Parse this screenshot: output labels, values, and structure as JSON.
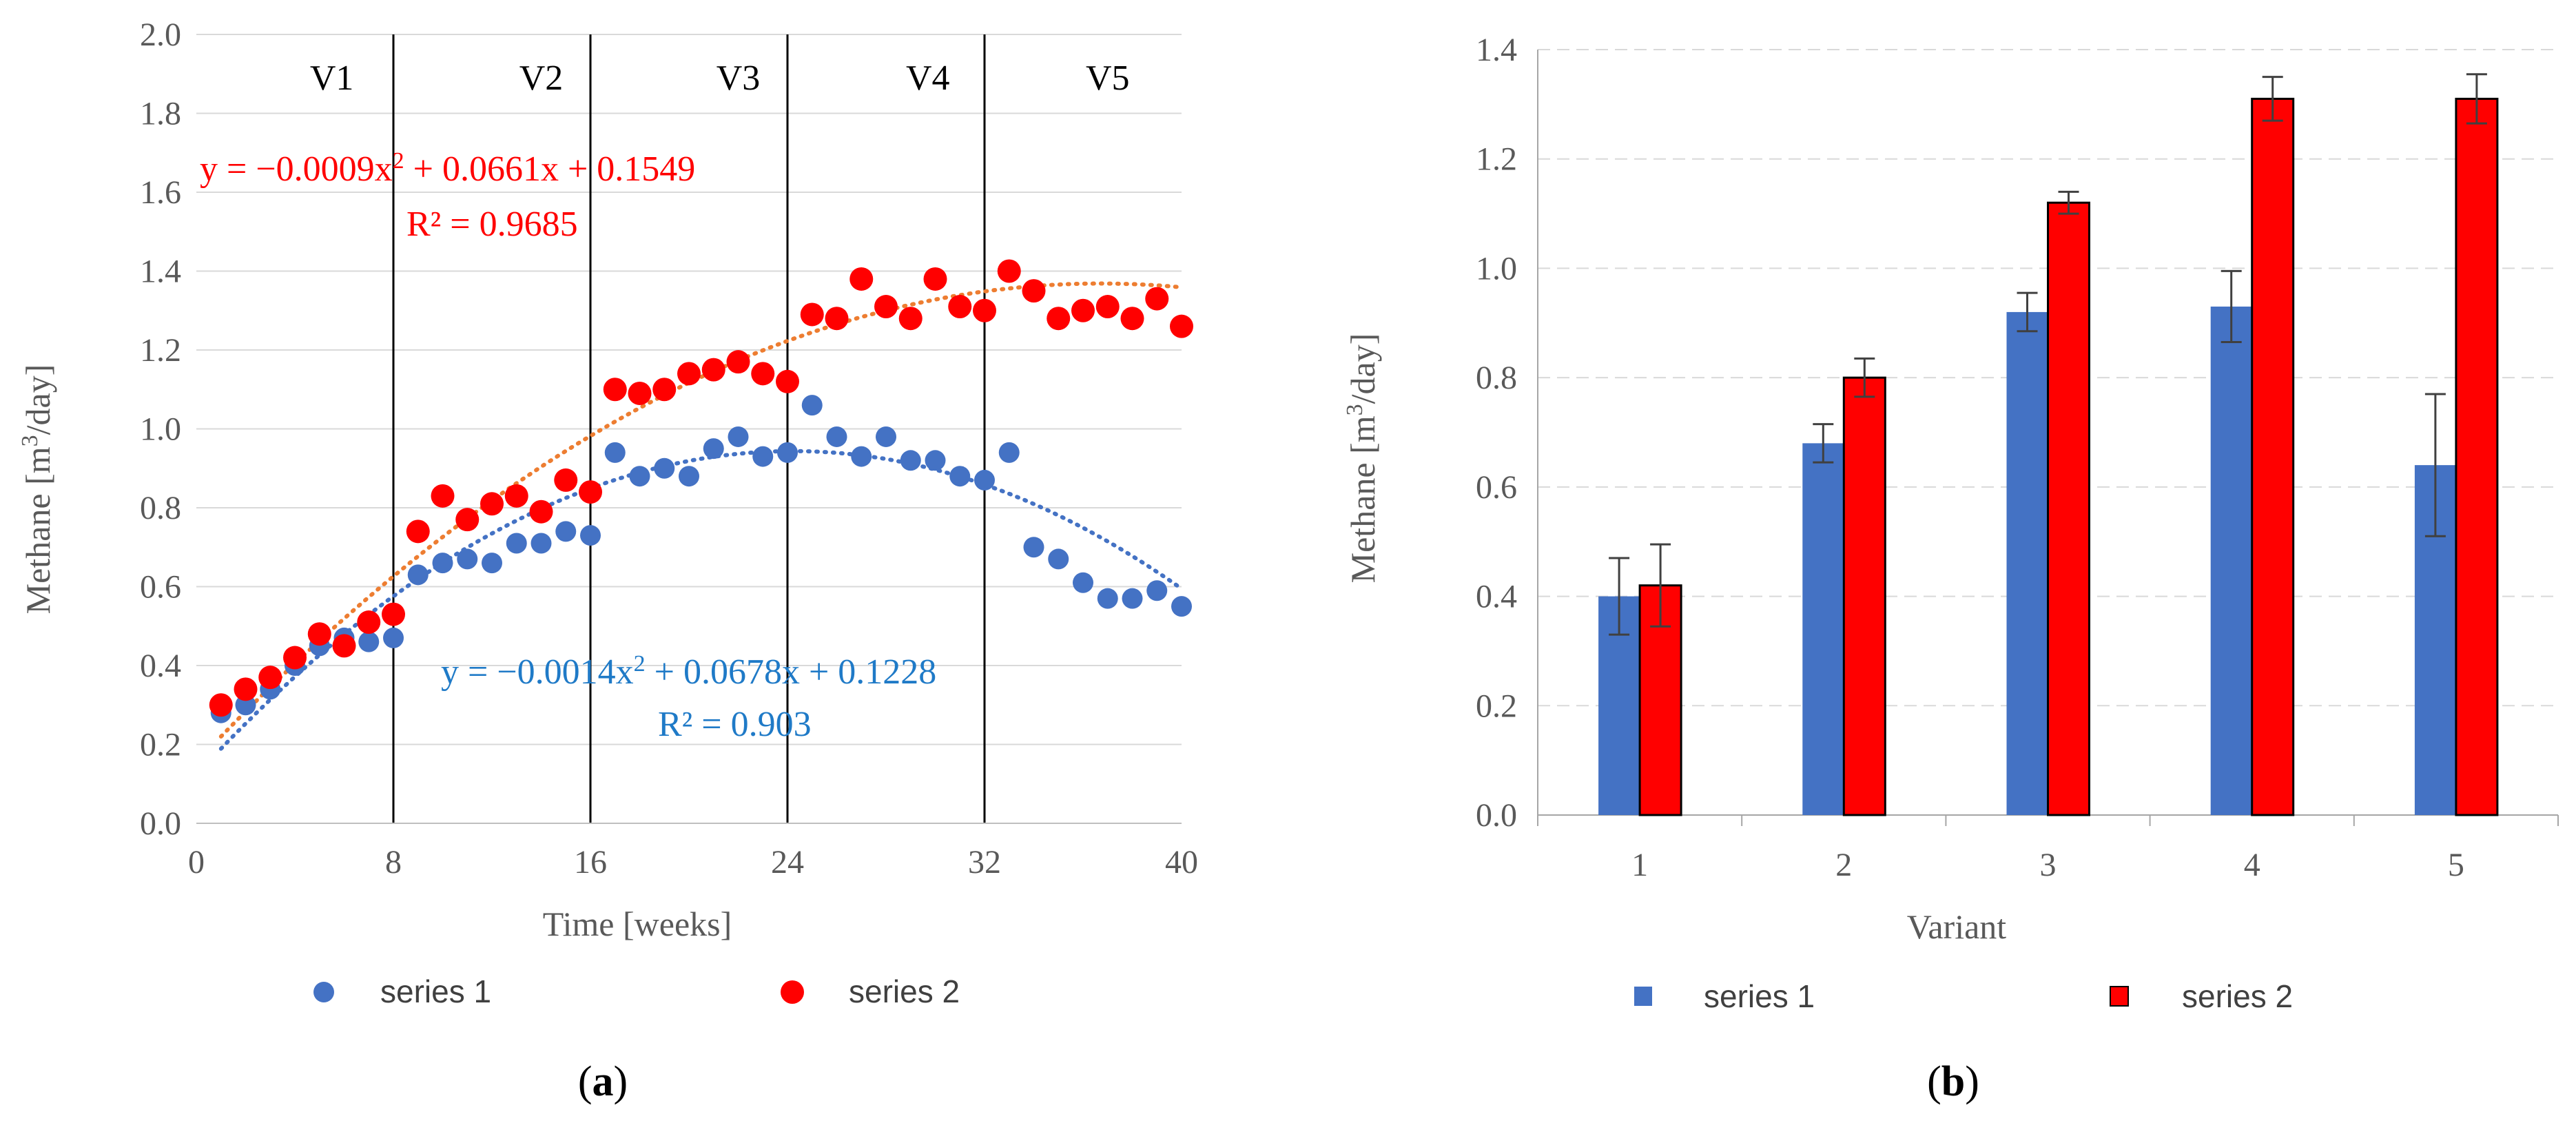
{
  "chart_data": [
    {
      "type": "scatter",
      "panel_label_prefix": "(",
      "panel_label_letter": "a",
      "panel_label_suffix": ")",
      "xlabel": "Time [weeks]",
      "ylabel_prefix": "Methane [m",
      "ylabel_sup": "3",
      "ylabel_suffix": "/day]",
      "xlim": [
        0,
        40
      ],
      "ylim": [
        0,
        2.0
      ],
      "xticks": [
        0,
        8,
        16,
        24,
        32,
        40
      ],
      "yticks": [
        0.0,
        0.2,
        0.4,
        0.6,
        0.8,
        1.0,
        1.2,
        1.4,
        1.6,
        1.8,
        2.0
      ],
      "ytick_labels": [
        "0.0",
        "0.2",
        "0.4",
        "0.6",
        "0.8",
        "1.0",
        "1.2",
        "1.4",
        "1.6",
        "1.8",
        "2.0"
      ],
      "phase_boundaries": [
        8,
        16,
        24,
        32
      ],
      "phases": [
        {
          "label": "V1",
          "center": 5.5
        },
        {
          "label": "V2",
          "center": 14
        },
        {
          "label": "V3",
          "center": 22
        },
        {
          "label": "V4",
          "center": 29.7
        },
        {
          "label": "V5",
          "center": 37
        }
      ],
      "series": [
        {
          "name": "series 1",
          "color": "#4472c4",
          "x": [
            1,
            2,
            3,
            4,
            5,
            6,
            7,
            8,
            9,
            10,
            11,
            12,
            13,
            14,
            15,
            16,
            17,
            18,
            19,
            20,
            21,
            22,
            23,
            24,
            25,
            26,
            27,
            28,
            29,
            30,
            31,
            32,
            33,
            34,
            35,
            36,
            37,
            38,
            39,
            40
          ],
          "y": [
            0.28,
            0.3,
            0.34,
            0.4,
            0.45,
            0.47,
            0.46,
            0.47,
            0.63,
            0.66,
            0.67,
            0.66,
            0.71,
            0.71,
            0.74,
            0.73,
            0.94,
            0.88,
            0.9,
            0.88,
            0.95,
            0.98,
            0.93,
            0.94,
            1.06,
            0.98,
            0.93,
            0.98,
            0.92,
            0.92,
            0.88,
            0.87,
            0.94,
            0.7,
            0.67,
            0.61,
            0.57,
            0.57,
            0.59,
            0.55
          ],
          "trend": {
            "a": -0.0014,
            "b": 0.0678,
            "c": 0.1228,
            "x_from": 1,
            "x_to": 40
          },
          "equation_prefix": "y = −0.0014x",
          "equation_sup": "2",
          "equation_suffix": " + 0.0678x + 0.1228",
          "r2": "R² = 0.903"
        },
        {
          "name": "series 2",
          "color": "#ff0000",
          "trend_color": "#ed7d31",
          "x": [
            1,
            2,
            3,
            4,
            5,
            6,
            7,
            8,
            9,
            10,
            11,
            12,
            13,
            14,
            15,
            16,
            17,
            18,
            19,
            20,
            21,
            22,
            23,
            24,
            25,
            26,
            27,
            28,
            29,
            30,
            31,
            32,
            33,
            34,
            35,
            36,
            37,
            38,
            39,
            40
          ],
          "y": [
            0.3,
            0.34,
            0.37,
            0.42,
            0.48,
            0.45,
            0.51,
            0.53,
            0.74,
            0.83,
            0.77,
            0.81,
            0.83,
            0.79,
            0.87,
            0.84,
            1.1,
            1.09,
            1.1,
            1.14,
            1.15,
            1.17,
            1.14,
            1.12,
            1.29,
            1.28,
            1.38,
            1.31,
            1.28,
            1.38,
            1.31,
            1.3,
            1.4,
            1.35,
            1.28,
            1.3,
            1.31,
            1.28,
            1.33,
            1.26
          ],
          "trend": {
            "a": -0.0009,
            "b": 0.0661,
            "c": 0.1549,
            "x_from": 1,
            "x_to": 40
          },
          "equation_prefix": "y = −0.0009x",
          "equation_sup": "2",
          "equation_suffix": " + 0.0661x + 0.1549",
          "r2": "R² = 0.9685"
        }
      ]
    },
    {
      "type": "bar",
      "panel_label_prefix": "(",
      "panel_label_letter": "b",
      "panel_label_suffix": ")",
      "xlabel": "Variant",
      "ylabel_prefix": "Methane [m",
      "ylabel_sup": "3",
      "ylabel_suffix": "/day]",
      "ylim": [
        0,
        1.4
      ],
      "yticks": [
        0.0,
        0.2,
        0.4,
        0.6,
        0.8,
        1.0,
        1.2,
        1.4
      ],
      "ytick_labels": [
        "0.0",
        "0.2",
        "0.4",
        "0.6",
        "0.8",
        "1.0",
        "1.2",
        "1.4"
      ],
      "grid": true,
      "categories": [
        "1",
        "2",
        "3",
        "4",
        "5"
      ],
      "series": [
        {
          "name": "series 1",
          "color": "#4472c4",
          "values": [
            0.4,
            0.68,
            0.92,
            0.93,
            0.64
          ],
          "errors": [
            0.07,
            0.035,
            0.035,
            0.065,
            0.13
          ]
        },
        {
          "name": "series 2",
          "color": "#ff0000",
          "values": [
            0.42,
            0.8,
            1.12,
            1.31,
            1.31
          ],
          "errors": [
            0.075,
            0.035,
            0.02,
            0.04,
            0.045
          ]
        }
      ]
    }
  ]
}
